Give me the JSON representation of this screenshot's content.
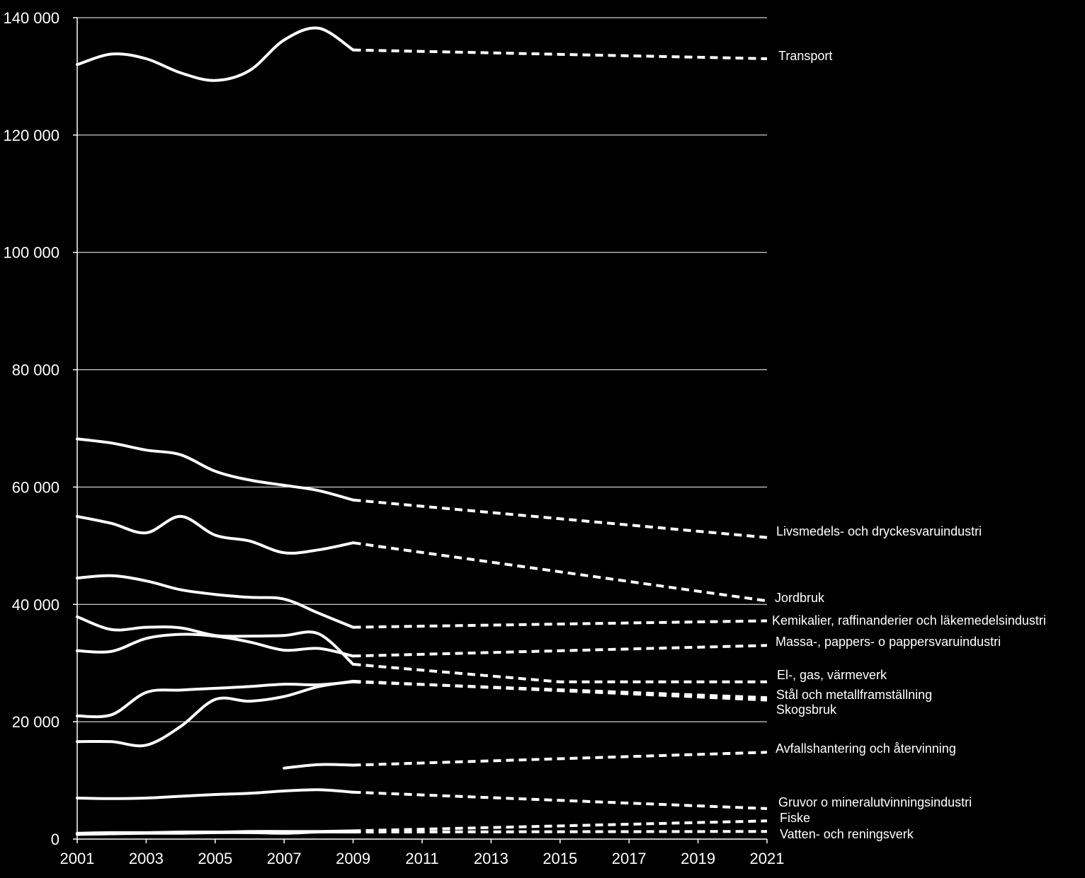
{
  "chart_data": {
    "type": "line",
    "title": "",
    "xlabel": "",
    "ylabel": "",
    "xlim": [
      2001,
      2021
    ],
    "ylim": [
      0,
      140000
    ],
    "x_ticks": [
      "2001",
      "2003",
      "2005",
      "2007",
      "2009",
      "2011",
      "2013",
      "2015",
      "2017",
      "2019",
      "2021"
    ],
    "y_ticks": [
      "0",
      "20 000",
      "40 000",
      "60 000",
      "80 000",
      "100 000",
      "120 000",
      "140 000"
    ],
    "grid": true,
    "legend": "labels at right end of lines",
    "line_style": {
      "historical": "solid",
      "projection": "dashed"
    },
    "series": [
      {
        "name": "Transport",
        "historical": [
          [
            2001,
            132000
          ],
          [
            2002,
            133800
          ],
          [
            2003,
            133000
          ],
          [
            2004,
            130600
          ],
          [
            2005,
            129300
          ],
          [
            2006,
            131000
          ],
          [
            2007,
            136200
          ],
          [
            2008,
            138200
          ],
          [
            2009,
            134500
          ]
        ],
        "projection": [
          [
            2009,
            134500
          ],
          [
            2021,
            133000
          ]
        ]
      },
      {
        "name": "Livsmedels- och dryckesvaruindustri",
        "historical": [
          [
            2001,
            68200
          ],
          [
            2002,
            67500
          ],
          [
            2003,
            66300
          ],
          [
            2004,
            65500
          ],
          [
            2005,
            62700
          ],
          [
            2006,
            61200
          ],
          [
            2007,
            60300
          ],
          [
            2008,
            59400
          ],
          [
            2009,
            57800
          ]
        ],
        "projection": [
          [
            2009,
            57800
          ],
          [
            2021,
            51400
          ]
        ]
      },
      {
        "name": "Jordbruk",
        "historical": [
          [
            2001,
            55000
          ],
          [
            2002,
            53800
          ],
          [
            2003,
            52200
          ],
          [
            2004,
            55000
          ],
          [
            2005,
            51800
          ],
          [
            2006,
            50800
          ],
          [
            2007,
            48800
          ],
          [
            2008,
            49300
          ],
          [
            2009,
            50500
          ]
        ],
        "projection": [
          [
            2009,
            50500
          ],
          [
            2021,
            40600
          ]
        ]
      },
      {
        "name": "Kemikalier, raffinanderier och läkemedelsindustri",
        "historical": [
          [
            2001,
            44500
          ],
          [
            2002,
            44900
          ],
          [
            2003,
            44000
          ],
          [
            2004,
            42500
          ],
          [
            2005,
            41700
          ],
          [
            2006,
            41200
          ],
          [
            2007,
            40900
          ],
          [
            2008,
            38500
          ],
          [
            2009,
            36100
          ]
        ],
        "projection": [
          [
            2009,
            36100
          ],
          [
            2021,
            37200
          ]
        ]
      },
      {
        "name": "Massa-, pappers- o pappersvaruindustri",
        "historical": [
          [
            2001,
            32100
          ],
          [
            2002,
            32000
          ],
          [
            2003,
            34200
          ],
          [
            2004,
            34900
          ],
          [
            2005,
            34600
          ],
          [
            2006,
            33600
          ],
          [
            2007,
            32200
          ],
          [
            2008,
            32500
          ],
          [
            2009,
            31200
          ]
        ],
        "projection": [
          [
            2009,
            31200
          ],
          [
            2021,
            33000
          ]
        ]
      },
      {
        "name": "El-, gas, värmeverk",
        "historical": [
          [
            2001,
            37900
          ],
          [
            2002,
            35700
          ],
          [
            2003,
            36100
          ],
          [
            2004,
            36000
          ],
          [
            2005,
            34700
          ],
          [
            2006,
            34600
          ],
          [
            2007,
            34700
          ],
          [
            2008,
            35000
          ],
          [
            2009,
            29800
          ]
        ],
        "projection": [
          [
            2009,
            29800
          ],
          [
            2015,
            26800
          ],
          [
            2021,
            26800
          ]
        ]
      },
      {
        "name": "Stål och metallframställning",
        "historical": [
          [
            2001,
            21000
          ],
          [
            2002,
            21200
          ],
          [
            2003,
            25000
          ],
          [
            2004,
            25400
          ],
          [
            2005,
            25700
          ],
          [
            2006,
            26000
          ],
          [
            2007,
            26400
          ],
          [
            2008,
            26300
          ],
          [
            2009,
            26800
          ]
        ],
        "projection": [
          [
            2009,
            26800
          ],
          [
            2021,
            24100
          ]
        ]
      },
      {
        "name": "Skogsbruk",
        "historical": [
          [
            2001,
            16600
          ],
          [
            2002,
            16600
          ],
          [
            2003,
            16000
          ],
          [
            2004,
            19200
          ],
          [
            2005,
            23800
          ],
          [
            2006,
            23500
          ],
          [
            2007,
            24300
          ],
          [
            2008,
            26000
          ],
          [
            2009,
            26900
          ]
        ],
        "projection": [
          [
            2009,
            26900
          ],
          [
            2021,
            23700
          ]
        ]
      },
      {
        "name": "Avfallshantering och återvinning",
        "historical": [
          [
            2007,
            12100
          ],
          [
            2008,
            12700
          ],
          [
            2009,
            12600
          ]
        ],
        "projection": [
          [
            2009,
            12600
          ],
          [
            2021,
            14800
          ]
        ]
      },
      {
        "name": "Gruvor o mineralutvinningsindustri",
        "historical": [
          [
            2001,
            7000
          ],
          [
            2002,
            6900
          ],
          [
            2003,
            7000
          ],
          [
            2004,
            7300
          ],
          [
            2005,
            7600
          ],
          [
            2006,
            7800
          ],
          [
            2007,
            8200
          ],
          [
            2008,
            8400
          ],
          [
            2009,
            8000
          ]
        ],
        "projection": [
          [
            2009,
            8000
          ],
          [
            2021,
            5200
          ]
        ]
      },
      {
        "name": "Fiske",
        "historical": [
          [
            2001,
            1000
          ],
          [
            2002,
            1100
          ],
          [
            2003,
            1100
          ],
          [
            2004,
            1200
          ],
          [
            2005,
            1200
          ],
          [
            2006,
            1300
          ],
          [
            2007,
            1300
          ],
          [
            2008,
            1300
          ],
          [
            2009,
            1400
          ]
        ],
        "projection": [
          [
            2009,
            1400
          ],
          [
            2021,
            3100
          ]
        ]
      },
      {
        "name": "Vatten- och reningsverk",
        "historical": [
          [
            2001,
            800
          ],
          [
            2002,
            900
          ],
          [
            2003,
            1000
          ],
          [
            2004,
            1000
          ],
          [
            2005,
            1100
          ],
          [
            2006,
            1100
          ],
          [
            2007,
            1000
          ],
          [
            2008,
            1200
          ],
          [
            2009,
            1200
          ]
        ],
        "projection": [
          [
            2009,
            1200
          ],
          [
            2021,
            1300
          ]
        ]
      }
    ]
  }
}
